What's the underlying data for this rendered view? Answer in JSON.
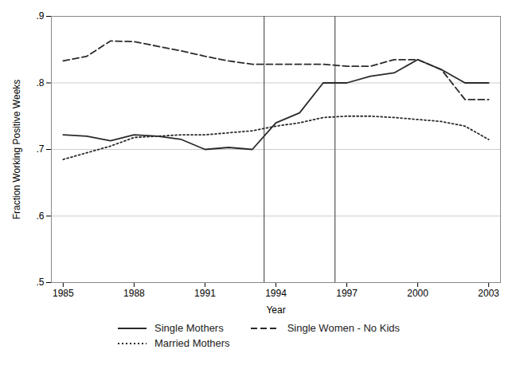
{
  "chart_data": {
    "type": "line",
    "x": [
      1985,
      1986,
      1987,
      1988,
      1989,
      1990,
      1991,
      1992,
      1993,
      1994,
      1995,
      1996,
      1997,
      1998,
      1999,
      2000,
      2001,
      2002,
      2003
    ],
    "series": [
      {
        "name": "Single Mothers",
        "color": "#2a2a2a",
        "line_style": "solid",
        "values": [
          0.722,
          0.72,
          0.713,
          0.722,
          0.72,
          0.715,
          0.7,
          0.703,
          0.7,
          0.74,
          0.755,
          0.8,
          0.8,
          0.81,
          0.815,
          0.835,
          0.82,
          0.8,
          0.8
        ]
      },
      {
        "name": "Single Women - No Kids",
        "color": "#2a2a2a",
        "line_style": "dashed",
        "values": [
          0.833,
          0.84,
          0.863,
          0.862,
          0.855,
          0.848,
          0.84,
          0.833,
          0.828,
          0.828,
          0.828,
          0.828,
          0.825,
          0.825,
          0.835,
          0.835,
          0.82,
          0.775,
          0.775
        ]
      },
      {
        "name": "Married Mothers",
        "color": "#2a2a2a",
        "line_style": "dotted",
        "values": [
          0.685,
          0.695,
          0.705,
          0.718,
          0.72,
          0.722,
          0.722,
          0.725,
          0.728,
          0.735,
          0.74,
          0.748,
          0.75,
          0.75,
          0.748,
          0.745,
          0.742,
          0.735,
          0.715
        ]
      }
    ],
    "vlines": [
      {
        "x": 1993.5,
        "color": "#555555"
      },
      {
        "x": 1996.5,
        "color": "#555555"
      }
    ],
    "xlim": [
      1984.5,
      2003.5
    ],
    "xticks": [
      1985,
      1988,
      1991,
      1994,
      1997,
      2000,
      2003
    ],
    "ylim": [
      0.5,
      0.9
    ],
    "yticks": [
      {
        "value": 0.5,
        "label": ".5"
      },
      {
        "value": 0.6,
        "label": ".6"
      },
      {
        "value": 0.7,
        "label": ".7"
      },
      {
        "value": 0.8,
        "label": ".8"
      },
      {
        "value": 0.9,
        "label": ".9"
      }
    ],
    "xlabel": "Year",
    "ylabel": "Fraction Working Positive Weeks",
    "grid": true,
    "legend": "bottom"
  }
}
